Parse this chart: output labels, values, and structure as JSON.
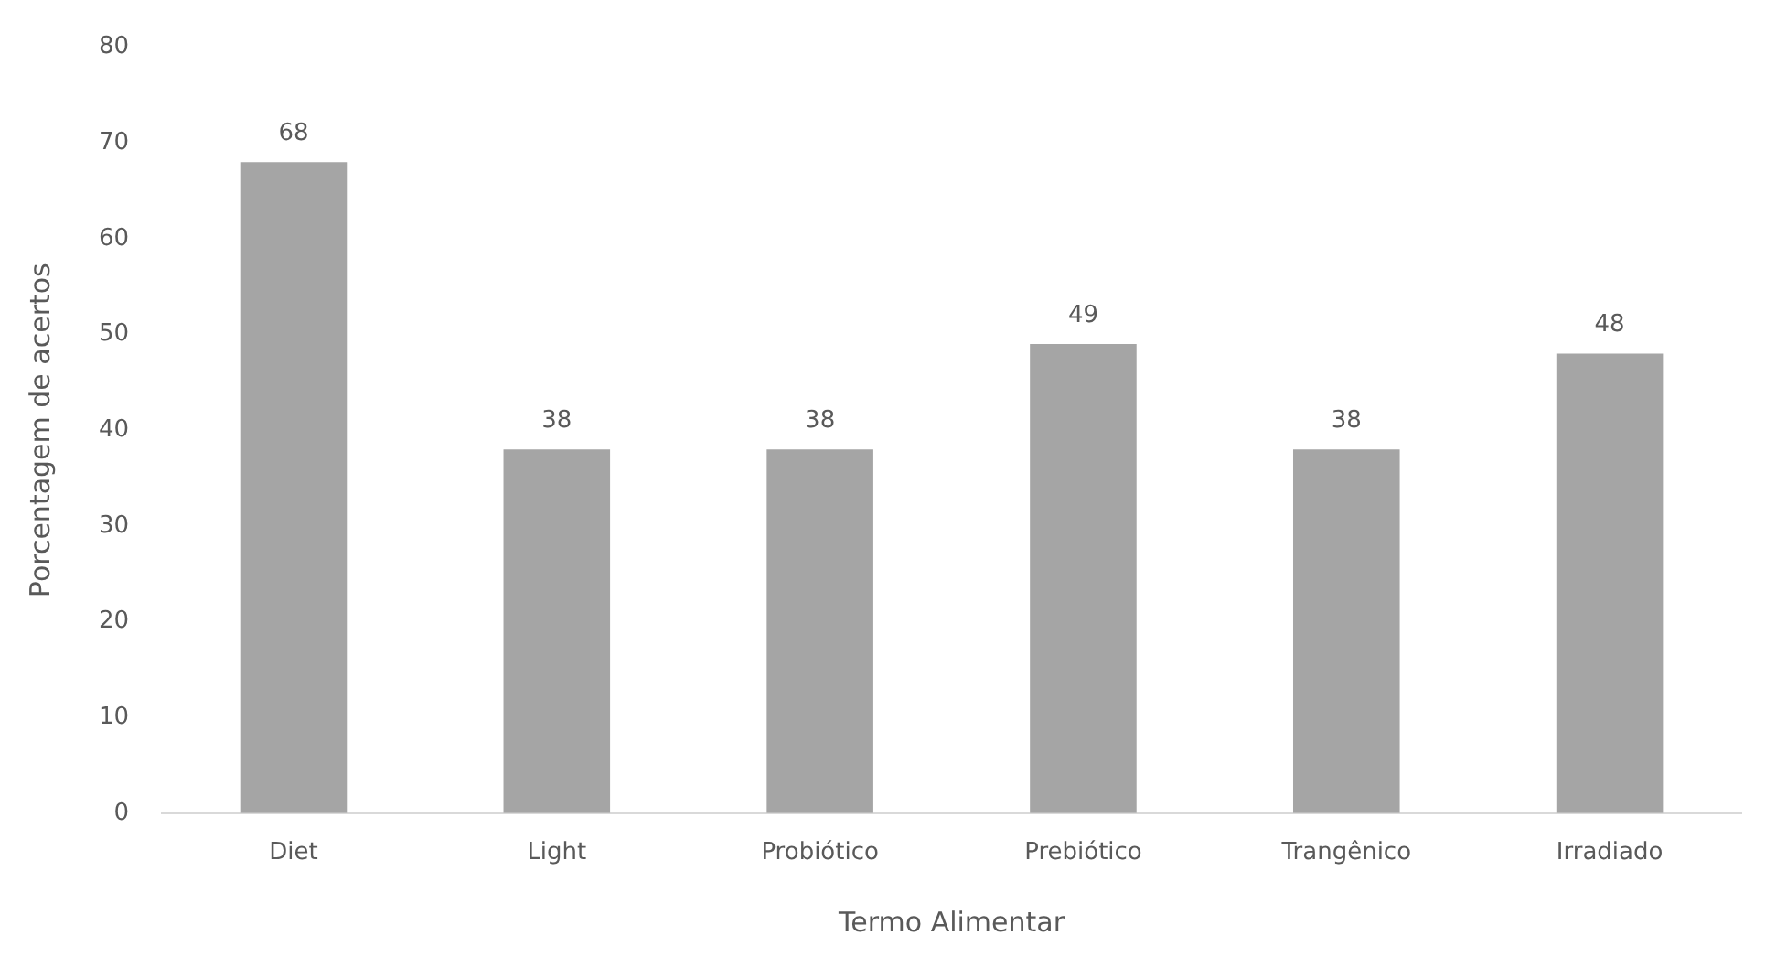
{
  "chart_data": {
    "type": "bar",
    "xlabel": "Termo Alimentar",
    "ylabel": "Porcentagem de acertos",
    "categories": [
      "Diet",
      "Light",
      "Probiótico",
      "Prebiótico",
      "Trangênico",
      "Irradiado"
    ],
    "values": [
      68,
      38,
      38,
      49,
      38,
      48
    ],
    "color": "#a5a5a5",
    "ylim": [
      0,
      80
    ],
    "yticks": [
      0,
      10,
      20,
      30,
      40,
      50,
      60,
      70,
      80
    ],
    "grid": false,
    "legend": false,
    "data_labels": true
  }
}
